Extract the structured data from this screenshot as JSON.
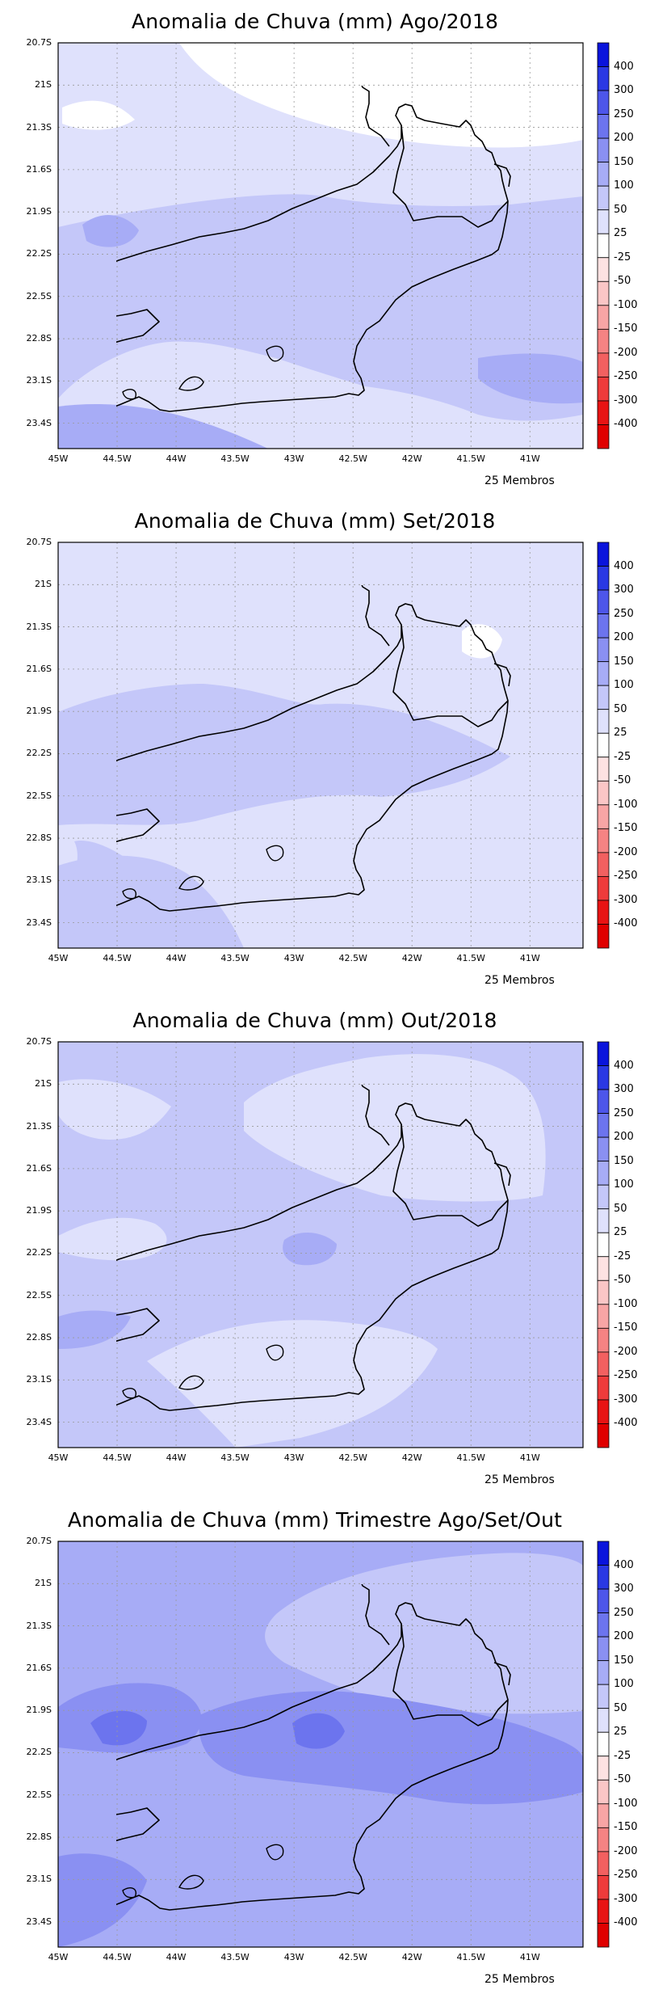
{
  "figure": {
    "members_label": "25 Membros",
    "lat_labels": [
      "20.7S",
      "21S",
      "21.3S",
      "21.6S",
      "21.9S",
      "22.2S",
      "22.5S",
      "22.8S",
      "23.1S",
      "23.4S"
    ],
    "lon_labels": [
      "45W",
      "44.5W",
      "44W",
      "43.5W",
      "43W",
      "42.5W",
      "42W",
      "41.5W",
      "41W"
    ],
    "colorbar": {
      "labels": [
        "400",
        "300",
        "250",
        "200",
        "150",
        "100",
        "50",
        "25",
        "-25",
        "-50",
        "-100",
        "-150",
        "-200",
        "-250",
        "-300",
        "-400"
      ],
      "colors": [
        "#0a14dc",
        "#2a38e4",
        "#4d56ea",
        "#6c74ee",
        "#8a90f2",
        "#a7acf6",
        "#c4c7f9",
        "#dfe1fc",
        "#ffffff",
        "#fde2e2",
        "#fbc6c6",
        "#f8a5a5",
        "#f58383",
        "#f26060",
        "#ee3b3b",
        "#e81414",
        "#e00000"
      ]
    }
  },
  "panels": [
    {
      "id": "ago",
      "title": "Anomalia de Chuva (mm) Ago/2018"
    },
    {
      "id": "set",
      "title": "Anomalia de Chuva (mm) Set/2018"
    },
    {
      "id": "out",
      "title": "Anomalia de Chuva (mm) Out/2018"
    },
    {
      "id": "tri",
      "title": "Anomalia de Chuva (mm) Trimestre Ago/Set/Out"
    }
  ]
}
